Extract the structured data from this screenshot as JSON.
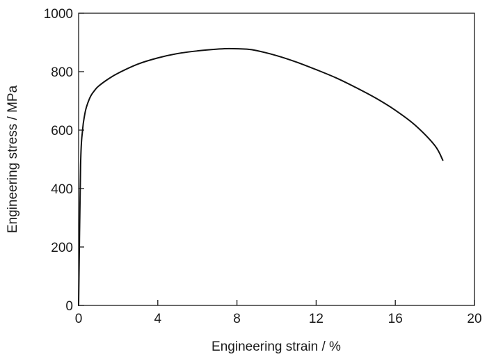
{
  "chart_data": {
    "type": "line",
    "title": "",
    "xlabel": "Engineering strain / %",
    "ylabel": "Engineering stress / MPa",
    "xlim": [
      0,
      20
    ],
    "ylim": [
      0,
      1000
    ],
    "x_ticks": [
      "0",
      "4",
      "8",
      "12",
      "16",
      "20"
    ],
    "y_ticks": [
      "0",
      "200",
      "400",
      "600",
      "800",
      "1000"
    ],
    "grid": false,
    "legend": "none",
    "line_color": "#111111",
    "series": [
      {
        "x": [
          0,
          0.1,
          0.2,
          0.3,
          0.4,
          0.6,
          0.8,
          1.0,
          1.5,
          2.0,
          3.0,
          4.0,
          5.0,
          6.0,
          7.0,
          7.6,
          8.5,
          9.0,
          10.0,
          11.0,
          12.0,
          13.0,
          14.0,
          15.0,
          16.0,
          17.0,
          18.0,
          18.4
        ],
        "y": [
          0,
          480,
          600,
          650,
          680,
          715,
          735,
          750,
          775,
          795,
          826,
          847,
          862,
          871,
          877,
          879,
          877,
          872,
          855,
          833,
          807,
          779,
          746,
          710,
          668,
          617,
          547,
          497
        ]
      }
    ]
  }
}
